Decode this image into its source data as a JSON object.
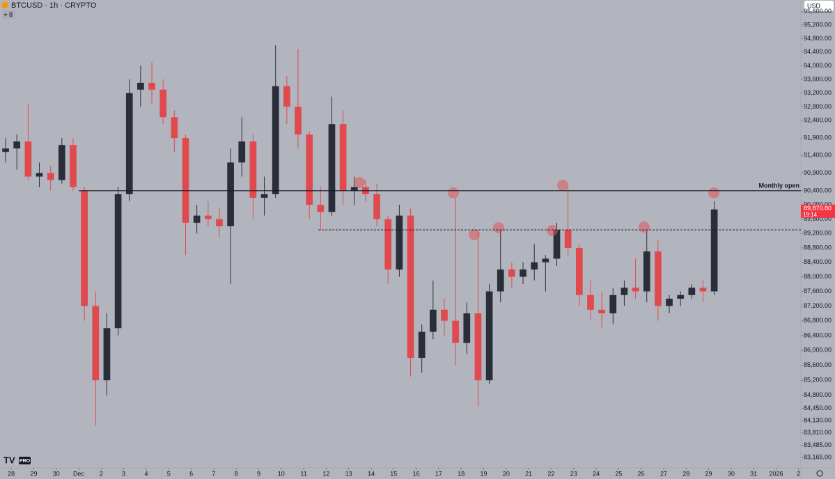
{
  "chart_data": {
    "type": "candlestick",
    "title": "BTCUSD · 1h · CRYPTO",
    "log_scale": true,
    "grid": false,
    "up_color": "#2a2e39",
    "down_color": "#e04a4f",
    "x": [
      -0.25,
      0.25,
      0.75,
      1.25,
      1.75,
      2.25,
      2.75,
      3.25,
      3.75,
      4.25,
      4.75,
      5.25,
      5.75,
      6.25,
      6.75,
      7.25,
      7.75,
      8.25,
      8.75,
      9.25,
      9.75,
      10.25,
      10.75,
      11.25,
      11.75,
      12.25,
      12.75,
      13.25,
      13.75,
      14.25,
      14.75,
      15.25,
      15.75,
      16.25,
      16.75,
      17.25,
      17.75,
      18.25,
      18.75,
      19.25,
      19.75,
      20.25,
      20.75,
      21.25,
      21.75,
      22.25,
      22.75,
      23.25,
      23.75,
      24.25,
      24.75,
      25.25,
      25.75,
      26.25,
      26.75,
      27.25,
      27.75,
      28.25,
      28.75,
      29.25,
      29.75,
      30.25,
      30.75,
      31.25
    ],
    "open": [
      91500,
      91600,
      91800,
      90800,
      90900,
      90700,
      91700,
      90400,
      87200,
      85200,
      86600,
      90300,
      93300,
      93500,
      93300,
      92500,
      91900,
      89500,
      89700,
      89600,
      89400,
      91200,
      91800,
      90200,
      90300,
      93400,
      92800,
      92000,
      90000,
      89800,
      92300,
      90400,
      90500,
      90300,
      89600,
      88200,
      89700,
      85800,
      86500,
      87100,
      86800,
      86200,
      87000,
      85200,
      87600,
      88200,
      88000,
      88200,
      88400,
      88500,
      89300,
      88800,
      87500,
      87100,
      87000,
      87500,
      87700,
      87600,
      88700,
      87200,
      87400,
      87500,
      87700,
      87600
    ],
    "high": [
      91900,
      92000,
      92900,
      91200,
      91100,
      91900,
      91900,
      90500,
      87600,
      87000,
      90500,
      93600,
      94000,
      94100,
      93600,
      92700,
      92000,
      90000,
      90100,
      89900,
      91600,
      92500,
      92000,
      90800,
      94600,
      93700,
      94500,
      92100,
      90500,
      93100,
      92700,
      90800,
      90700,
      90600,
      89700,
      90000,
      89900,
      86700,
      87900,
      87400,
      90200,
      87300,
      89300,
      87800,
      89300,
      88400,
      88400,
      88900,
      88600,
      89500,
      90500,
      88900,
      87900,
      87600,
      87700,
      87900,
      88500,
      89300,
      89000,
      87500,
      87600,
      87800,
      87900,
      90100
    ],
    "low": [
      91200,
      91000,
      90700,
      90500,
      90400,
      90600,
      90400,
      86800,
      84000,
      84800,
      86400,
      90100,
      92800,
      92900,
      92300,
      91500,
      88600,
      89200,
      89400,
      89100,
      87800,
      90800,
      89600,
      89700,
      90200,
      92300,
      91600,
      89600,
      89300,
      89700,
      90000,
      90000,
      90100,
      89400,
      87800,
      88000,
      85300,
      85400,
      86300,
      86400,
      85600,
      85900,
      84500,
      85100,
      87300,
      87700,
      87800,
      87900,
      87600,
      88300,
      88600,
      87200,
      86800,
      86600,
      86700,
      87200,
      87400,
      87300,
      86800,
      87000,
      87200,
      87400,
      87300,
      87500
    ],
    "close": [
      91600,
      91800,
      90800,
      90900,
      90700,
      91700,
      90500,
      87200,
      85200,
      86600,
      90300,
      93200,
      93500,
      93300,
      92500,
      91900,
      89500,
      89700,
      89600,
      89400,
      91200,
      91800,
      90200,
      90300,
      93400,
      92800,
      92000,
      90000,
      89800,
      92300,
      90400,
      90500,
      90300,
      89600,
      88200,
      89700,
      85800,
      86500,
      87100,
      86800,
      86200,
      87000,
      85200,
      87600,
      88200,
      88000,
      88200,
      88400,
      88500,
      89300,
      88800,
      87500,
      87100,
      87000,
      87500,
      87700,
      87600,
      88700,
      87200,
      87400,
      87500,
      87700,
      87600,
      89870.8
    ],
    "xlim": [
      -0.5,
      35.1
    ],
    "xticks": [
      {
        "value": 0,
        "label": "28"
      },
      {
        "value": 1,
        "label": "29"
      },
      {
        "value": 2,
        "label": "30"
      },
      {
        "value": 3,
        "label": "Dec"
      },
      {
        "value": 4,
        "label": "2"
      },
      {
        "value": 5,
        "label": "3"
      },
      {
        "value": 6,
        "label": "4"
      },
      {
        "value": 7,
        "label": "5"
      },
      {
        "value": 8,
        "label": "6"
      },
      {
        "value": 9,
        "label": "7"
      },
      {
        "value": 10,
        "label": "8"
      },
      {
        "value": 11,
        "label": "9"
      },
      {
        "value": 12,
        "label": "10"
      },
      {
        "value": 13,
        "label": "11"
      },
      {
        "value": 14,
        "label": "12"
      },
      {
        "value": 15,
        "label": "13"
      },
      {
        "value": 16,
        "label": "14"
      },
      {
        "value": 17,
        "label": "15"
      },
      {
        "value": 18,
        "label": "16"
      },
      {
        "value": 19,
        "label": "17"
      },
      {
        "value": 20,
        "label": "18"
      },
      {
        "value": 21,
        "label": "19"
      },
      {
        "value": 22,
        "label": "20"
      },
      {
        "value": 23,
        "label": "21"
      },
      {
        "value": 24,
        "label": "22"
      },
      {
        "value": 25,
        "label": "23"
      },
      {
        "value": 26,
        "label": "24"
      },
      {
        "value": 27,
        "label": "25"
      },
      {
        "value": 28,
        "label": "26"
      },
      {
        "value": 29,
        "label": "27"
      },
      {
        "value": 30,
        "label": "28"
      },
      {
        "value": 31,
        "label": "29"
      },
      {
        "value": 32,
        "label": "30"
      },
      {
        "value": 33,
        "label": "31"
      },
      {
        "value": 34,
        "label": "2026"
      },
      {
        "value": 35,
        "label": "2"
      }
    ],
    "ylim": [
      82900,
      95950
    ],
    "yticks": [
      {
        "value": 95600,
        "label": "95,600.00"
      },
      {
        "value": 95200,
        "label": "95,200.00"
      },
      {
        "value": 94800,
        "label": "94,800.00"
      },
      {
        "value": 94400,
        "label": "94,400.00"
      },
      {
        "value": 94000,
        "label": "94,000.00"
      },
      {
        "value": 93600,
        "label": "93,600.00"
      },
      {
        "value": 93200,
        "label": "93,200.00"
      },
      {
        "value": 92800,
        "label": "92,800.00"
      },
      {
        "value": 92400,
        "label": "92,400.00"
      },
      {
        "value": 91900,
        "label": "91,900.00"
      },
      {
        "value": 91400,
        "label": "91,400.00"
      },
      {
        "value": 90900,
        "label": "90,900.00"
      },
      {
        "value": 90400,
        "label": "90,400.00"
      },
      {
        "value": 90000,
        "label": "90,000.00"
      },
      {
        "value": 89600,
        "label": "89,600.00"
      },
      {
        "value": 89200,
        "label": "89,200.00"
      },
      {
        "value": 88800,
        "label": "88,800.00"
      },
      {
        "value": 88400,
        "label": "88,400.00"
      },
      {
        "value": 88000,
        "label": "88,000.00"
      },
      {
        "value": 87600,
        "label": "87,600.00"
      },
      {
        "value": 87200,
        "label": "87,200.00"
      },
      {
        "value": 86800,
        "label": "86,800.00"
      },
      {
        "value": 86400,
        "label": "86,400.00"
      },
      {
        "value": 86000,
        "label": "86,000.00"
      },
      {
        "value": 85600,
        "label": "85,600.00"
      },
      {
        "value": 85200,
        "label": "85,200.00"
      },
      {
        "value": 84800,
        "label": "84,800.00"
      },
      {
        "value": 84450,
        "label": "84,450.00"
      },
      {
        "value": 84130,
        "label": "84,130.00"
      },
      {
        "value": 83810,
        "label": "83,810.00"
      },
      {
        "value": 83485,
        "label": "83,485.00"
      },
      {
        "value": 83165,
        "label": "83,165.00"
      }
    ],
    "monthly_open": {
      "label": "Monthly open",
      "value": 90400
    },
    "level_line": {
      "value": 89300,
      "x_start": 13.65
    },
    "last_price": {
      "value": 89870.8,
      "label": "89,870.80",
      "countdown": "19:14"
    }
  },
  "toolbar": {
    "indicator_count": "8",
    "currency": "USD",
    "logo": "PRO"
  }
}
